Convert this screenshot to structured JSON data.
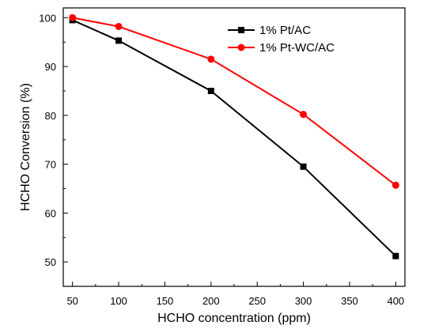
{
  "chart_data": {
    "type": "line",
    "xlabel": "HCHO concentration (ppm)",
    "ylabel": "HCHO Conversion (%)",
    "xlim": [
      40,
      410
    ],
    "ylim": [
      45,
      102
    ],
    "x_ticks": [
      50,
      100,
      150,
      200,
      250,
      300,
      350,
      400
    ],
    "y_ticks": [
      50,
      60,
      70,
      80,
      90,
      100
    ],
    "x_tick_labels": [
      "50",
      "100",
      "150",
      "200",
      "250",
      "300",
      "350",
      "400"
    ],
    "y_tick_labels": [
      "50",
      "60",
      "70",
      "80",
      "90",
      "100"
    ],
    "legend_position": "top-right",
    "grid": false,
    "series": [
      {
        "name": "1% Pt/AC",
        "color": "#000000",
        "marker": "square",
        "x": [
          50,
          100,
          200,
          300,
          400
        ],
        "y": [
          99.5,
          95.3,
          85.0,
          69.5,
          51.2
        ]
      },
      {
        "name": "1% Pt-WC/AC",
        "color": "#ff0000",
        "marker": "circle",
        "x": [
          50,
          100,
          200,
          300,
          400
        ],
        "y": [
          100.0,
          98.2,
          91.5,
          80.2,
          65.7
        ]
      }
    ]
  }
}
